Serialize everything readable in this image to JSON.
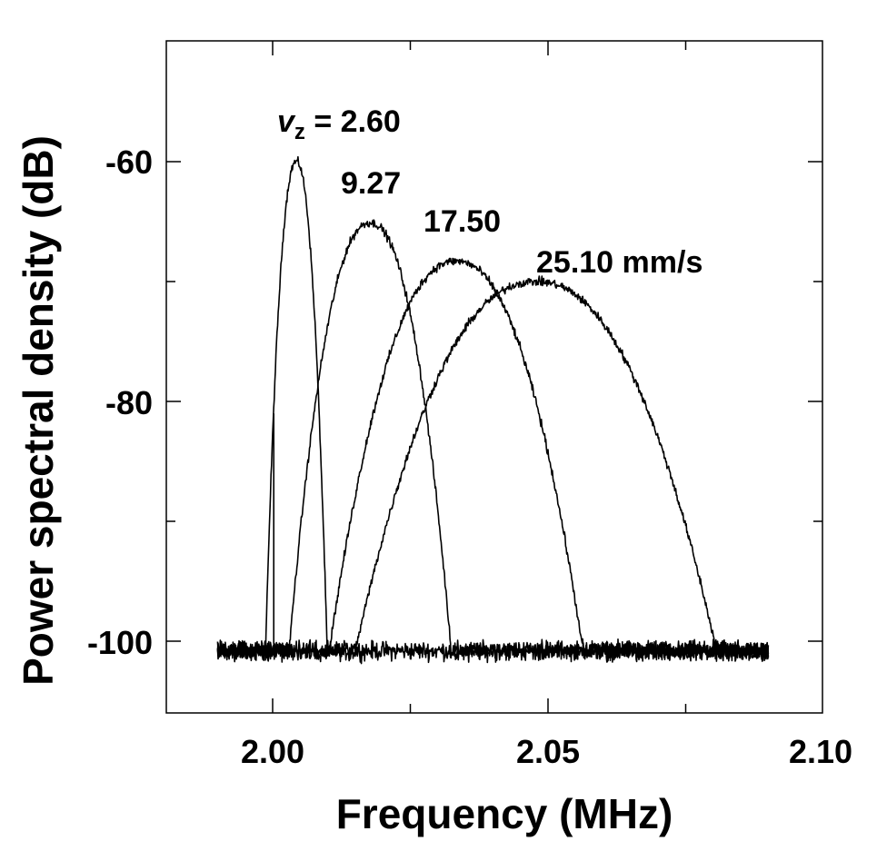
{
  "chart_data": {
    "type": "line",
    "title": "",
    "xlabel": "Frequency (MHz)",
    "ylabel": "Power spectral density (dB)",
    "xlim": [
      1.985,
      2.1
    ],
    "ylim": [
      -105,
      -50
    ],
    "x_major_ticks": [
      2.0,
      2.05,
      2.1
    ],
    "x_tick_labels": [
      "2.00",
      "2.05",
      "2.10"
    ],
    "y_major_ticks": [
      -60,
      -80,
      -100
    ],
    "y_tick_labels": [
      "-60",
      "-80",
      "-100"
    ],
    "noise_floor_db": -100.8,
    "x_data_range": [
      1.99,
      2.09
    ],
    "grid": false,
    "legend": "none",
    "annotations": [
      {
        "id": "v1",
        "prefix": "v",
        "subscript": "z",
        "text": " = 2.60",
        "x": 2.0005,
        "y": -57.8
      },
      {
        "id": "v2",
        "text": "9.27",
        "x": 2.0098,
        "y": -62.8
      },
      {
        "id": "v3",
        "text": "17.50",
        "x": 2.026,
        "y": -67.3
      },
      {
        "id": "v4",
        "text": "25.10 mm/s",
        "x": 2.0445,
        "y": -70.4
      }
    ],
    "series": [
      {
        "name": "2.60",
        "peak_x": 2.0043,
        "peak_y": -60.0,
        "fwhm_half_width": 0.0032,
        "base_width": 0.0035
      },
      {
        "name": "9.27",
        "peak_x": 2.0177,
        "peak_y": -65.1,
        "fwhm_half_width": 0.0095,
        "base_width": 0.0092
      },
      {
        "name": "17.50",
        "peak_x": 2.0333,
        "peak_y": -68.3,
        "fwhm_half_width": 0.0145,
        "base_width": 0.0144
      },
      {
        "name": "25.10",
        "peak_x": 2.0478,
        "peak_y": -70.0,
        "fwhm_half_width": 0.0205,
        "base_width": 0.0205
      }
    ],
    "spike": {
      "x": 2.0002,
      "y": -81.0
    }
  }
}
